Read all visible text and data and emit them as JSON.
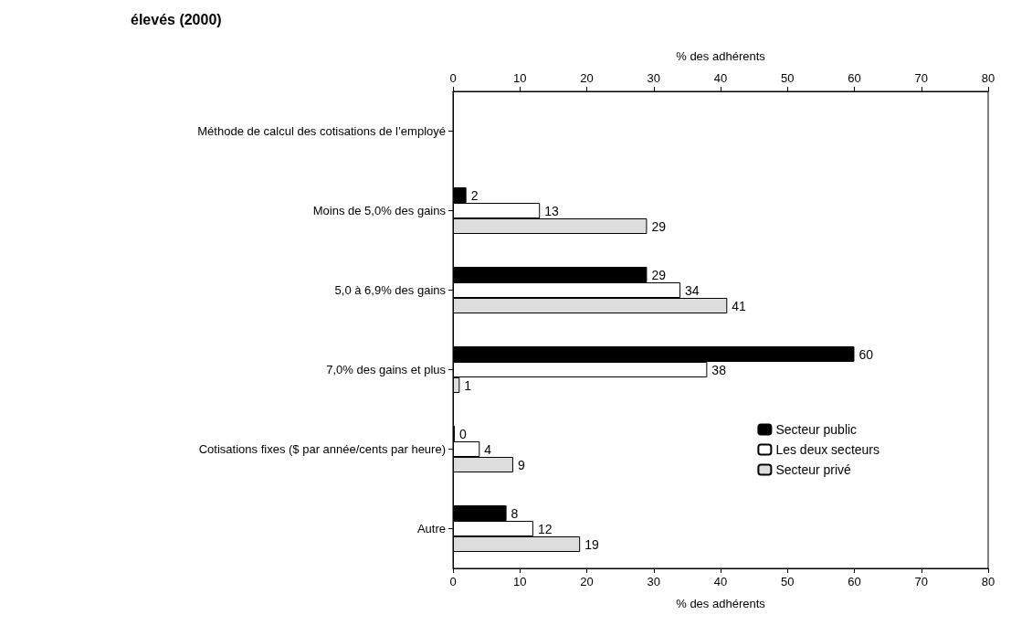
{
  "chart_data": {
    "type": "bar",
    "orientation": "horizontal",
    "title": "élevés (2000)",
    "categories": [
      "Méthode de calcul des cotisations de l’employé",
      "Moins de 5,0% des gains",
      "5,0 à 6,9% des gains",
      "7,0% des gains et plus",
      "Cotisations fixes ($ par année/cents par heure)",
      "Autre"
    ],
    "series": [
      {
        "name": "Secteur public",
        "color": "#000000",
        "values": [
          null,
          2,
          29,
          60,
          0,
          8
        ]
      },
      {
        "name": "Les deux secteurs",
        "color": "#ffffff",
        "values": [
          null,
          13,
          34,
          38,
          4,
          12
        ]
      },
      {
        "name": "Secteur privé",
        "color": "#dddddd",
        "values": [
          null,
          29,
          41,
          1,
          9,
          19
        ]
      }
    ],
    "xlabel": "% des adhérents",
    "x2label": "% des adhérents",
    "xlim": [
      0,
      80
    ],
    "xticks": [
      0,
      10,
      20,
      30,
      40,
      50,
      60,
      70,
      80
    ],
    "x2lim": [
      0,
      80
    ],
    "x2ticks": [
      0,
      10,
      20,
      30,
      40,
      50,
      60,
      70,
      80
    ],
    "data_labels": true,
    "grid": false,
    "legend": "right"
  }
}
